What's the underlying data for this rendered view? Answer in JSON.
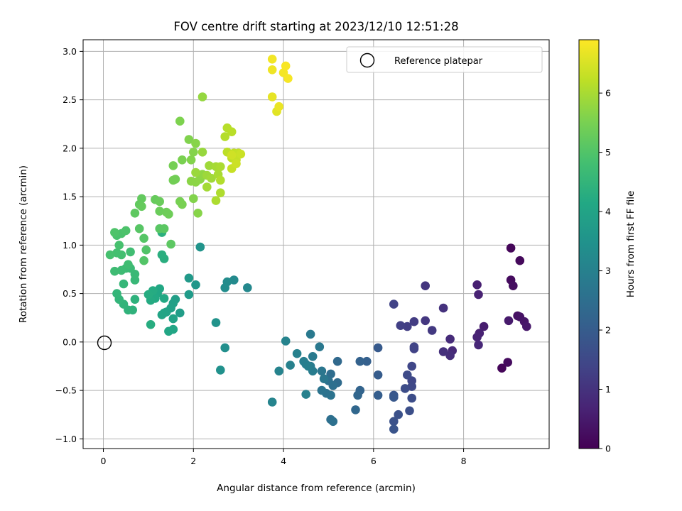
{
  "chart_data": {
    "type": "scatter",
    "title": "FOV centre drift starting at 2023/12/10 12:51:28",
    "xlabel": "Angular distance from reference (arcmin)",
    "ylabel": "Rotation from reference (arcmin)",
    "xlim": [
      -0.45,
      9.9
    ],
    "ylim": [
      -1.1,
      3.12
    ],
    "x_ticks": [
      0,
      2,
      4,
      6,
      8
    ],
    "x_tick_labels": [
      "0",
      "2",
      "4",
      "6",
      "8"
    ],
    "y_ticks": [
      -1.0,
      -0.5,
      0.0,
      0.5,
      1.0,
      1.5,
      2.0,
      2.5,
      3.0
    ],
    "y_tick_labels": [
      "−1.0",
      "−0.5",
      "0.0",
      "0.5",
      "1.0",
      "1.5",
      "2.0",
      "2.5",
      "3.0"
    ],
    "grid": true,
    "legend": {
      "placement": "top-right",
      "entries": [
        {
          "label": "Reference platepar",
          "marker": "open-circle"
        }
      ]
    },
    "reference_point": {
      "x": 0,
      "y": 0
    },
    "colorbar": {
      "label": "Hours from first FF file",
      "colormap": "viridis",
      "range": [
        0,
        6.9
      ],
      "ticks": [
        0,
        1,
        2,
        3,
        4,
        5,
        6
      ],
      "tick_labels": [
        "0",
        "1",
        "2",
        "3",
        "4",
        "5",
        "6"
      ]
    },
    "series": [
      {
        "values_format": "[x, y, hours]",
        "points": [
          [
            9.05,
            0.97,
            0.1
          ],
          [
            9.25,
            0.84,
            0.15
          ],
          [
            9.05,
            0.64,
            0.2
          ],
          [
            9.1,
            0.58,
            0.25
          ],
          [
            9.2,
            0.27,
            0.3
          ],
          [
            9.25,
            0.26,
            0.35
          ],
          [
            9.35,
            0.21,
            0.4
          ],
          [
            9.4,
            0.16,
            0.45
          ],
          [
            9.0,
            0.22,
            0.5
          ],
          [
            8.85,
            -0.27,
            0.1
          ],
          [
            8.98,
            -0.21,
            0.2
          ],
          [
            8.45,
            0.16,
            0.55
          ],
          [
            8.35,
            0.09,
            0.65
          ],
          [
            8.3,
            0.05,
            0.7
          ],
          [
            8.33,
            -0.03,
            0.75
          ],
          [
            8.3,
            0.59,
            0.6
          ],
          [
            8.33,
            0.49,
            0.65
          ],
          [
            7.75,
            -0.09,
            0.8
          ],
          [
            7.7,
            0.03,
            0.85
          ],
          [
            7.7,
            -0.14,
            0.9
          ],
          [
            7.55,
            -0.1,
            0.95
          ],
          [
            7.55,
            0.35,
            1.0
          ],
          [
            7.15,
            0.58,
            1.05
          ],
          [
            7.15,
            0.22,
            1.1
          ],
          [
            7.3,
            0.12,
            1.15
          ],
          [
            6.9,
            0.21,
            1.2
          ],
          [
            6.75,
            0.16,
            1.25
          ],
          [
            6.6,
            0.17,
            1.3
          ],
          [
            6.45,
            0.39,
            1.35
          ],
          [
            6.9,
            -0.07,
            1.35
          ],
          [
            6.9,
            -0.05,
            1.4
          ],
          [
            6.85,
            -0.25,
            1.45
          ],
          [
            6.85,
            -0.4,
            1.45
          ],
          [
            6.85,
            -0.46,
            1.5
          ],
          [
            6.75,
            -0.34,
            1.55
          ],
          [
            6.7,
            -0.48,
            1.6
          ],
          [
            6.85,
            -0.58,
            1.6
          ],
          [
            6.8,
            -0.71,
            1.65
          ],
          [
            6.55,
            -0.75,
            1.7
          ],
          [
            6.45,
            -0.82,
            1.75
          ],
          [
            6.45,
            -0.9,
            1.8
          ],
          [
            6.45,
            -0.55,
            1.85
          ],
          [
            6.45,
            -0.57,
            1.9
          ],
          [
            6.1,
            -0.06,
            1.95
          ],
          [
            6.1,
            -0.34,
            2.0
          ],
          [
            6.1,
            -0.55,
            2.05
          ],
          [
            5.85,
            -0.2,
            2.1
          ],
          [
            5.7,
            -0.2,
            2.15
          ],
          [
            5.7,
            -0.5,
            2.2
          ],
          [
            5.65,
            -0.55,
            2.25
          ],
          [
            5.6,
            -0.7,
            2.3
          ],
          [
            5.2,
            -0.2,
            2.35
          ],
          [
            5.2,
            -0.42,
            2.4
          ],
          [
            5.05,
            -0.33,
            2.45
          ],
          [
            5.1,
            -0.45,
            2.5
          ],
          [
            5.0,
            -0.4,
            2.55
          ],
          [
            4.95,
            -0.53,
            2.6
          ],
          [
            5.05,
            -0.55,
            2.62
          ],
          [
            4.85,
            -0.5,
            2.65
          ],
          [
            4.85,
            -0.3,
            2.7
          ],
          [
            4.9,
            -0.38,
            2.72
          ],
          [
            4.8,
            -0.05,
            2.75
          ],
          [
            5.05,
            -0.8,
            2.5
          ],
          [
            5.1,
            -0.82,
            2.55
          ],
          [
            4.6,
            0.08,
            2.8
          ],
          [
            4.65,
            -0.15,
            2.82
          ],
          [
            4.6,
            -0.25,
            2.85
          ],
          [
            4.65,
            -0.3,
            2.88
          ],
          [
            4.5,
            -0.23,
            2.9
          ],
          [
            4.45,
            -0.2,
            2.92
          ],
          [
            4.55,
            -0.25,
            2.95
          ],
          [
            4.5,
            -0.54,
            2.97
          ],
          [
            4.3,
            -0.12,
            3.0
          ],
          [
            4.15,
            -0.24,
            3.02
          ],
          [
            4.05,
            0.01,
            3.05
          ],
          [
            3.9,
            -0.3,
            3.07
          ],
          [
            3.75,
            -0.62,
            3.1
          ],
          [
            3.2,
            0.56,
            3.2
          ],
          [
            2.9,
            0.64,
            3.25
          ],
          [
            2.75,
            0.62,
            3.3
          ],
          [
            2.7,
            0.56,
            3.35
          ],
          [
            2.7,
            -0.06,
            3.4
          ],
          [
            2.6,
            -0.29,
            3.45
          ],
          [
            2.5,
            0.2,
            3.5
          ],
          [
            2.15,
            0.98,
            3.55
          ],
          [
            2.05,
            0.59,
            3.6
          ],
          [
            1.9,
            0.66,
            3.7
          ],
          [
            1.9,
            0.49,
            3.75
          ],
          [
            1.7,
            0.3,
            3.8
          ],
          [
            1.6,
            0.44,
            3.85
          ],
          [
            1.55,
            0.4,
            3.9
          ],
          [
            1.5,
            0.35,
            3.92
          ],
          [
            1.55,
            0.24,
            3.95
          ],
          [
            1.4,
            0.31,
            3.97
          ],
          [
            1.35,
            0.3,
            4.0
          ],
          [
            1.3,
            0.28,
            4.02
          ],
          [
            1.55,
            0.13,
            4.05
          ],
          [
            1.45,
            0.11,
            4.07
          ],
          [
            1.25,
            0.55,
            4.1
          ],
          [
            1.2,
            0.5,
            4.12
          ],
          [
            1.35,
            0.45,
            4.15
          ],
          [
            1.15,
            0.45,
            4.17
          ],
          [
            1.05,
            0.43,
            4.2
          ],
          [
            1.1,
            0.53,
            4.22
          ],
          [
            1.0,
            0.49,
            4.25
          ],
          [
            1.05,
            0.18,
            4.27
          ],
          [
            1.35,
            0.86,
            4.3
          ],
          [
            1.3,
            0.9,
            4.32
          ],
          [
            1.3,
            1.13,
            4.35
          ],
          [
            0.7,
            0.44,
            4.4
          ],
          [
            0.65,
            0.33,
            4.42
          ],
          [
            0.55,
            0.33,
            4.45
          ],
          [
            0.45,
            0.39,
            4.47
          ],
          [
            0.35,
            0.44,
            4.5
          ],
          [
            0.3,
            0.5,
            4.52
          ],
          [
            0.45,
            0.6,
            4.55
          ],
          [
            0.7,
            0.64,
            4.6
          ],
          [
            0.7,
            0.7,
            4.62
          ],
          [
            0.6,
            0.76,
            4.65
          ],
          [
            0.5,
            0.76,
            4.67
          ],
          [
            0.4,
            0.74,
            4.7
          ],
          [
            0.25,
            0.73,
            4.72
          ],
          [
            0.55,
            0.8,
            4.75
          ],
          [
            0.6,
            0.93,
            4.77
          ],
          [
            0.4,
            0.9,
            4.8
          ],
          [
            0.3,
            0.92,
            4.82
          ],
          [
            0.15,
            0.9,
            4.85
          ],
          [
            0.35,
            1.0,
            4.87
          ],
          [
            0.3,
            1.1,
            4.9
          ],
          [
            0.4,
            1.12,
            4.92
          ],
          [
            0.5,
            1.15,
            4.95
          ],
          [
            0.25,
            1.13,
            4.97
          ],
          [
            0.95,
            0.95,
            5.0
          ],
          [
            0.9,
            0.84,
            5.02
          ],
          [
            0.9,
            1.07,
            5.05
          ],
          [
            0.8,
            1.17,
            5.07
          ],
          [
            1.25,
            1.17,
            5.1
          ],
          [
            1.35,
            1.17,
            5.12
          ],
          [
            1.5,
            1.01,
            5.15
          ],
          [
            0.7,
            1.33,
            5.17
          ],
          [
            0.8,
            1.42,
            5.2
          ],
          [
            0.85,
            1.48,
            5.22
          ],
          [
            0.85,
            1.4,
            5.25
          ],
          [
            1.15,
            1.47,
            5.27
          ],
          [
            1.25,
            1.45,
            5.3
          ],
          [
            1.25,
            1.35,
            5.32
          ],
          [
            1.4,
            1.34,
            5.35
          ],
          [
            1.45,
            1.32,
            5.37
          ],
          [
            1.6,
            1.68,
            5.4
          ],
          [
            1.55,
            1.67,
            5.42
          ],
          [
            1.55,
            1.82,
            5.45
          ],
          [
            1.7,
            1.45,
            5.47
          ],
          [
            1.75,
            1.42,
            5.5
          ],
          [
            1.75,
            1.88,
            5.52
          ],
          [
            1.7,
            2.28,
            5.55
          ],
          [
            1.9,
            2.09,
            5.58
          ],
          [
            1.95,
            1.88,
            5.6
          ],
          [
            2.0,
            1.96,
            5.62
          ],
          [
            2.05,
            2.05,
            5.65
          ],
          [
            1.95,
            1.66,
            5.68
          ],
          [
            2.05,
            1.65,
            5.7
          ],
          [
            2.15,
            1.68,
            5.72
          ],
          [
            2.2,
            1.73,
            5.75
          ],
          [
            2.0,
            1.48,
            5.6
          ],
          [
            2.1,
            1.33,
            5.65
          ],
          [
            2.2,
            2.53,
            5.8
          ],
          [
            2.2,
            1.96,
            5.82
          ],
          [
            2.05,
            1.75,
            5.85
          ],
          [
            2.3,
            1.72,
            5.88
          ],
          [
            2.35,
            1.82,
            5.9
          ],
          [
            2.4,
            1.69,
            5.92
          ],
          [
            2.3,
            1.6,
            5.95
          ],
          [
            2.5,
            1.81,
            5.97
          ],
          [
            2.55,
            1.73,
            6.0
          ],
          [
            2.6,
            1.81,
            6.02
          ],
          [
            2.5,
            1.46,
            6.05
          ],
          [
            2.6,
            1.54,
            6.07
          ],
          [
            2.6,
            1.67,
            6.1
          ],
          [
            2.7,
            2.12,
            6.12
          ],
          [
            2.75,
            2.21,
            6.15
          ],
          [
            2.85,
            2.17,
            6.17
          ],
          [
            2.75,
            1.96,
            6.2
          ],
          [
            2.85,
            1.9,
            6.22
          ],
          [
            2.9,
            1.95,
            6.25
          ],
          [
            3.0,
            1.95,
            6.27
          ],
          [
            2.95,
            1.88,
            6.3
          ],
          [
            2.85,
            1.79,
            6.32
          ],
          [
            3.05,
            1.94,
            6.35
          ],
          [
            2.95,
            1.84,
            6.37
          ],
          [
            2.85,
            1.93,
            6.4
          ],
          [
            3.85,
            2.38,
            6.6
          ],
          [
            3.75,
            2.53,
            6.65
          ],
          [
            3.9,
            2.43,
            6.7
          ],
          [
            3.75,
            2.81,
            6.75
          ],
          [
            3.75,
            2.92,
            6.78
          ],
          [
            4.0,
            2.78,
            6.8
          ],
          [
            4.1,
            2.72,
            6.82
          ],
          [
            4.05,
            2.85,
            6.85
          ]
        ]
      }
    ]
  }
}
